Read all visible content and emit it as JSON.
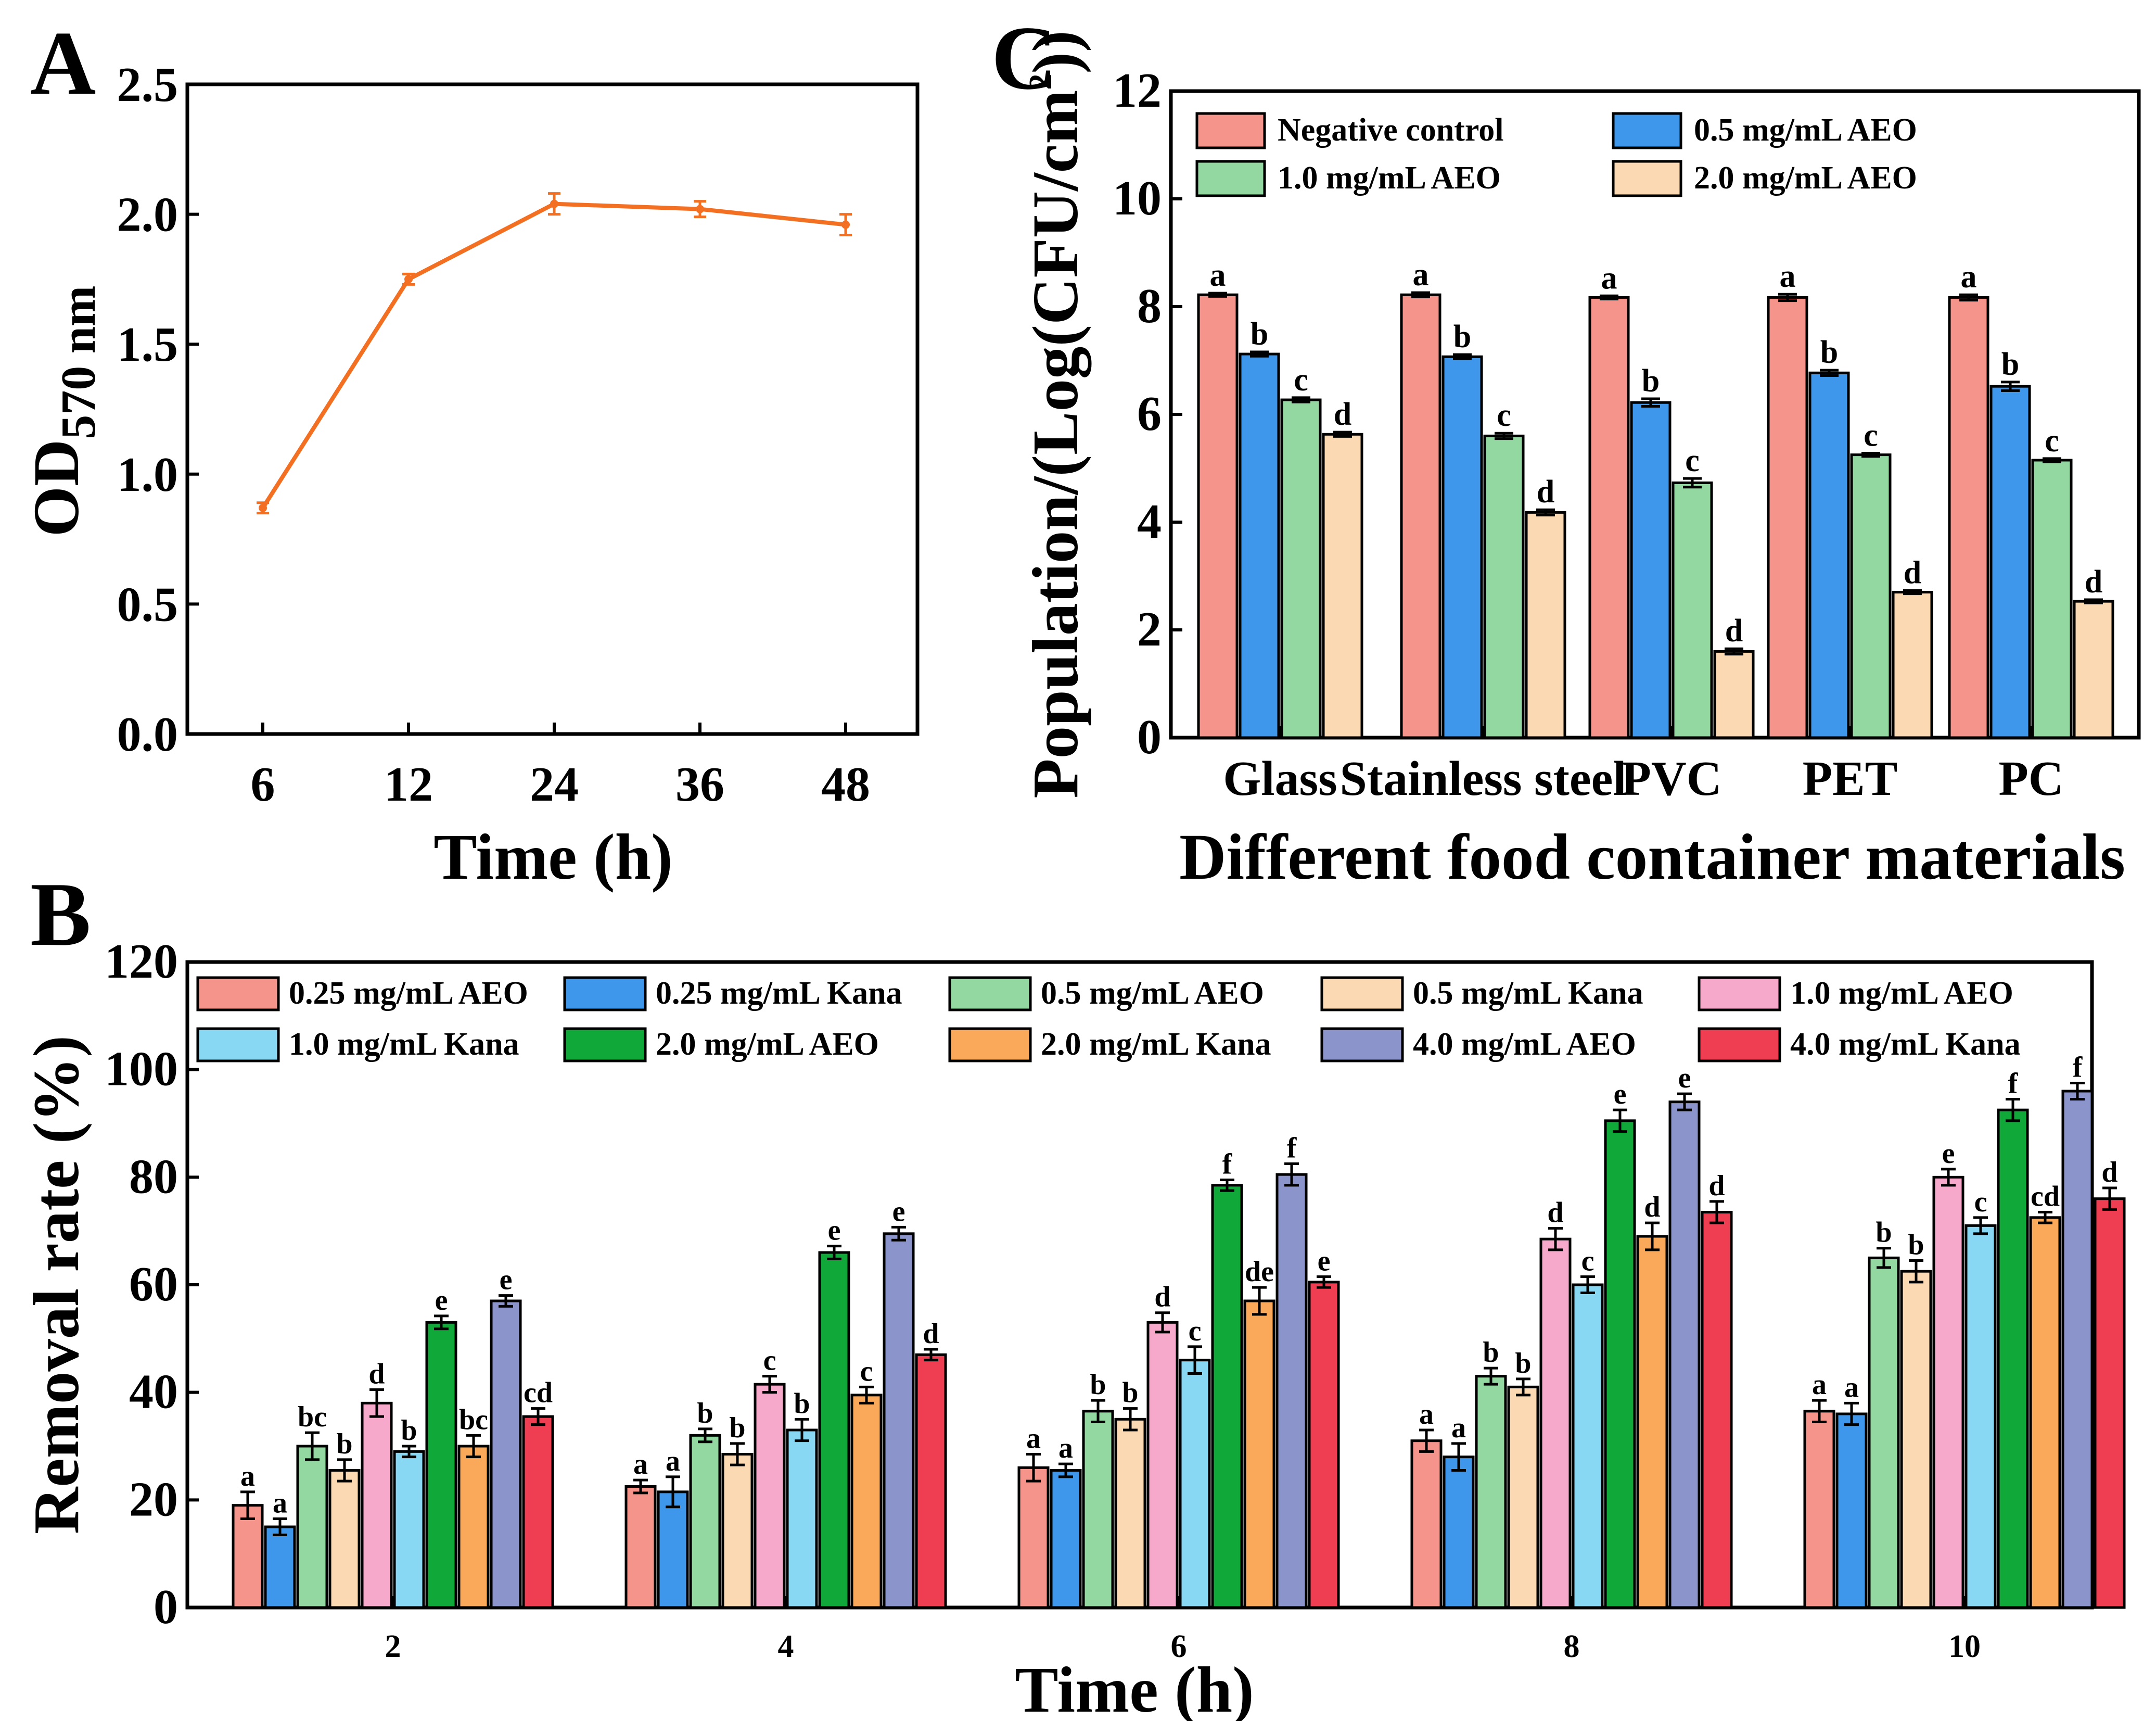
{
  "figure": {
    "panels": [
      "A",
      "B",
      "C"
    ]
  },
  "chart_data": [
    {
      "panel": "A",
      "type": "line",
      "title": "",
      "xlabel": "Time (h)",
      "ylabel_main": "OD",
      "ylabel_sub": "570 nm",
      "categories": [
        "6",
        "12",
        "24",
        "36",
        "48"
      ],
      "values": [
        0.87,
        1.75,
        2.04,
        2.02,
        1.96
      ],
      "errors": [
        0.02,
        0.02,
        0.04,
        0.03,
        0.04
      ],
      "ylim": [
        0,
        2.5
      ],
      "yticks": [
        "0.0",
        "0.5",
        "1.0",
        "1.5",
        "2.0",
        "2.5"
      ],
      "color": "#F36F21",
      "grid": false
    },
    {
      "panel": "C",
      "type": "bar",
      "title": "",
      "xlabel": "Different food container materials",
      "ylabel": "Population/(Log(CFU/cm",
      "ylabel_sup": "2",
      "ylabel_end": "))",
      "categories": [
        "Glass",
        "Stainless steel",
        "PVC",
        "PET",
        "PC"
      ],
      "ylim": [
        0,
        12
      ],
      "yticks": [
        "0",
        "2",
        "4",
        "6",
        "8",
        "10",
        "12"
      ],
      "legend_position": "top-left",
      "series": [
        {
          "name": "Negative control",
          "color": "#F4948A",
          "values": [
            8.22,
            8.22,
            8.17,
            8.17,
            8.17
          ],
          "errors": [
            0.03,
            0.04,
            0.03,
            0.06,
            0.05
          ],
          "sig": [
            "a",
            "a",
            "a",
            "a",
            "a"
          ]
        },
        {
          "name": "0.5 mg/mL AEO",
          "color": "#3E97EA",
          "values": [
            7.12,
            7.07,
            6.22,
            6.77,
            6.52
          ],
          "errors": [
            0.04,
            0.04,
            0.07,
            0.05,
            0.08
          ],
          "sig": [
            "b",
            "b",
            "b",
            "b",
            "b"
          ]
        },
        {
          "name": "1.0 mg/mL AEO",
          "color": "#93D8A0",
          "values": [
            6.27,
            5.6,
            4.73,
            5.25,
            5.15
          ],
          "errors": [
            0.04,
            0.05,
            0.08,
            0.03,
            0.03
          ],
          "sig": [
            "c",
            "c",
            "c",
            "c",
            "c"
          ]
        },
        {
          "name": "2.0 mg/mL AEO",
          "color": "#FAD9B3",
          "values": [
            5.63,
            4.18,
            1.6,
            2.7,
            2.53
          ],
          "errors": [
            0.04,
            0.05,
            0.05,
            0.03,
            0.03
          ],
          "sig": [
            "d",
            "d",
            "d",
            "d",
            "d"
          ]
        }
      ]
    },
    {
      "panel": "B",
      "type": "bar",
      "title": "",
      "xlabel": "Time (h)",
      "ylabel": "Removal rate (%)",
      "categories": [
        "2",
        "4",
        "6",
        "8",
        "10"
      ],
      "ylim": [
        0,
        120
      ],
      "yticks": [
        "0",
        "20",
        "40",
        "60",
        "80",
        "100",
        "120"
      ],
      "legend_position": "top",
      "series": [
        {
          "name": "0.25 mg/mL AEO",
          "color": "#F4948A",
          "values": [
            19,
            22.5,
            26,
            31,
            36.5
          ],
          "errors": [
            2.5,
            1.2,
            2.5,
            2.0,
            2.0
          ],
          "sig": [
            "a",
            "a",
            "a",
            "a",
            "a"
          ]
        },
        {
          "name": "0.25 mg/mL Kana",
          "color": "#3E97EA",
          "values": [
            15,
            21.5,
            25.5,
            28,
            36
          ],
          "errors": [
            1.5,
            2.8,
            1.2,
            2.5,
            2.0
          ],
          "sig": [
            "a",
            "a",
            "a",
            "a",
            "a"
          ]
        },
        {
          "name": "0.5 mg/mL AEO",
          "color": "#93D8A0",
          "values": [
            30,
            32,
            36.5,
            43,
            65
          ],
          "errors": [
            2.5,
            1.2,
            2.0,
            1.5,
            1.8
          ],
          "sig": [
            "bc",
            "b",
            "b",
            "b",
            "b"
          ]
        },
        {
          "name": "0.5 mg/mL Kana",
          "color": "#FAD9B3",
          "values": [
            25.5,
            28.5,
            35,
            41,
            62.5
          ],
          "errors": [
            2.0,
            2.0,
            2.0,
            1.5,
            2.0
          ],
          "sig": [
            "b",
            "b",
            "b",
            "b",
            "b"
          ]
        },
        {
          "name": "1.0 mg/mL AEO",
          "color": "#F7A9CC",
          "values": [
            38,
            41.5,
            53,
            68.5,
            80
          ],
          "errors": [
            2.5,
            1.5,
            1.8,
            2.0,
            1.5
          ],
          "sig": [
            "d",
            "c",
            "d",
            "d",
            "e"
          ]
        },
        {
          "name": "1.0 mg/mL Kana",
          "color": "#88D8F3",
          "values": [
            29,
            33,
            46,
            60,
            71
          ],
          "errors": [
            1.0,
            2.0,
            2.5,
            1.5,
            1.5
          ],
          "sig": [
            "b",
            "b",
            "c",
            "c",
            "c"
          ]
        },
        {
          "name": "2.0 mg/mL AEO",
          "color": "#11A83A",
          "values": [
            53,
            66,
            78.5,
            90.5,
            92.5
          ],
          "errors": [
            1.2,
            1.2,
            1.0,
            2.0,
            2.0
          ],
          "sig": [
            "e",
            "e",
            "f",
            "e",
            "f"
          ]
        },
        {
          "name": "2.0 mg/mL Kana",
          "color": "#FAA85A",
          "values": [
            30,
            39.5,
            57,
            69,
            72.5
          ],
          "errors": [
            2.0,
            1.5,
            2.5,
            2.5,
            1.0
          ],
          "sig": [
            "bc",
            "c",
            "de",
            "d",
            "cd"
          ]
        },
        {
          "name": "4.0 mg/mL AEO",
          "color": "#8C95CB",
          "values": [
            57,
            69.5,
            80.5,
            94,
            96
          ],
          "errors": [
            1.0,
            1.2,
            2.0,
            1.5,
            1.5
          ],
          "sig": [
            "e",
            "e",
            "f",
            "e",
            "f"
          ]
        },
        {
          "name": "4.0 mg/mL Kana",
          "color": "#EF3E52",
          "values": [
            35.5,
            47,
            60.5,
            73.5,
            76
          ],
          "errors": [
            1.5,
            1.0,
            1.0,
            2.0,
            2.0
          ],
          "sig": [
            "cd",
            "d",
            "e",
            "d",
            "d"
          ]
        }
      ]
    }
  ]
}
